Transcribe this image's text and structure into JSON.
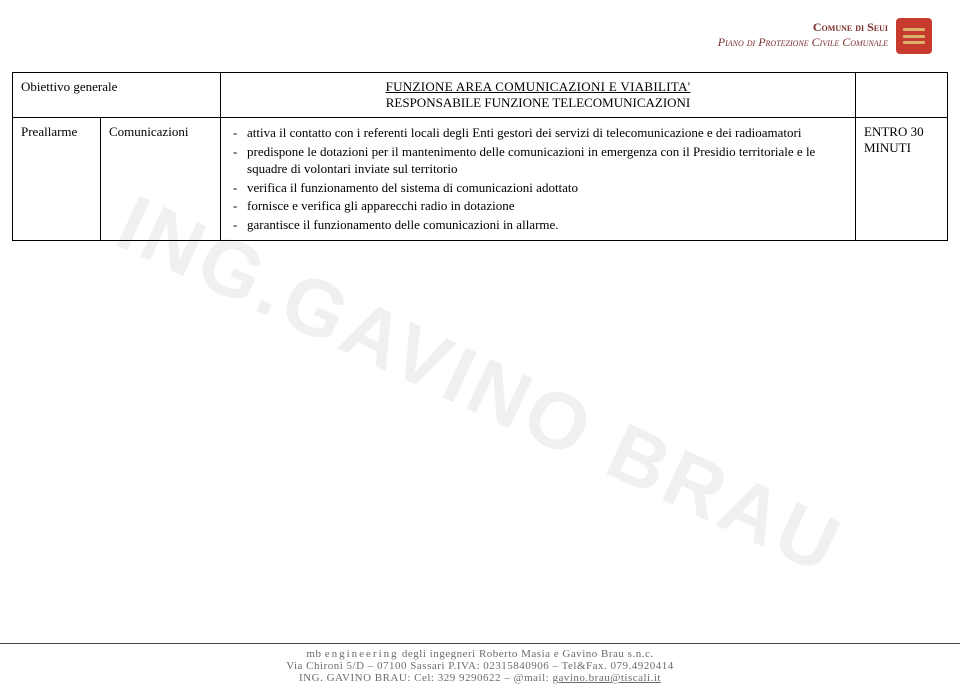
{
  "header": {
    "line1": "Comune di Seui",
    "line2": "Piano di Protezione Civile Comunale",
    "icon_bg": "#c73a2e",
    "icon_bar": "#d9b26b"
  },
  "watermark": "ING.GAVINO BRAU",
  "table": {
    "row1": {
      "label": "Obiettivo generale",
      "title_line1": "FUNZIONE AREA COMUNICAZIONI E VIABILITA'",
      "title_line2": "RESPONSABILE FUNZIONE TELECOMUNICAZIONI"
    },
    "row2": {
      "label": "Preallarme",
      "phase": "Comunicazioni",
      "bullets": [
        "attiva il contatto con i referenti locali degli Enti gestori dei servizi di telecomunicazione e dei radioamatori",
        "predispone le dotazioni per il mantenimento delle comunicazioni in emergenza con il Presidio territoriale e le squadre di volontari inviate sul territorio",
        "verifica il funzionamento del sistema di comunicazioni adottato",
        "fornisce e verifica gli apparecchi radio in dotazione",
        "garantisce il funzionamento delle comunicazioni in allarme."
      ],
      "time_line1": "ENTRO 30",
      "time_line2": "MINUTI"
    }
  },
  "footer": {
    "line1_a": "mb ",
    "line1_b": "engineering",
    "line1_c": " degli ingegneri Roberto Masia e Gavino Brau s.n.c.",
    "line2": "Via Chironi 5/D – 07100 Sassari P.IVA: 02315840906 – Tel&Fax. 079.4920414",
    "line3_a": "ING. GAVINO BRAU: Cel: 329 9290622 – @mail: ",
    "line3_link": "gavino.brau@tiscali.it"
  },
  "colors": {
    "header_text": "#7b2e2e",
    "border": "#000000",
    "footer_text": "#6b6b6b",
    "watermark": "rgba(0,0,0,0.06)"
  }
}
